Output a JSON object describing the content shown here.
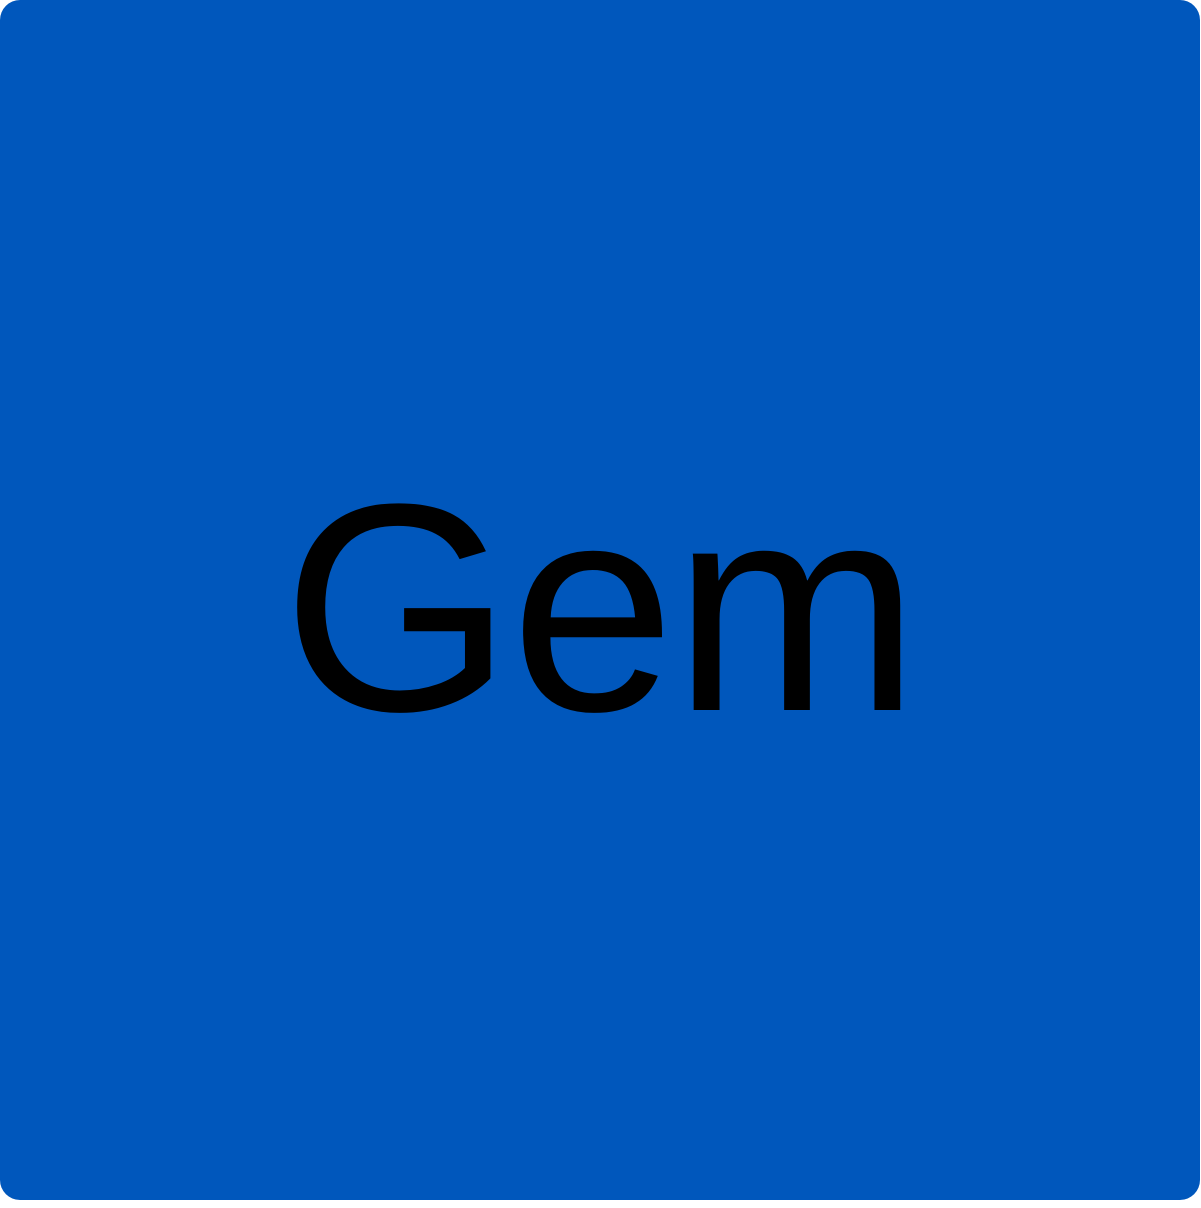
{
  "tile": {
    "label": "Gem",
    "background_color": "#0057bc",
    "text_color": "#000000"
  }
}
